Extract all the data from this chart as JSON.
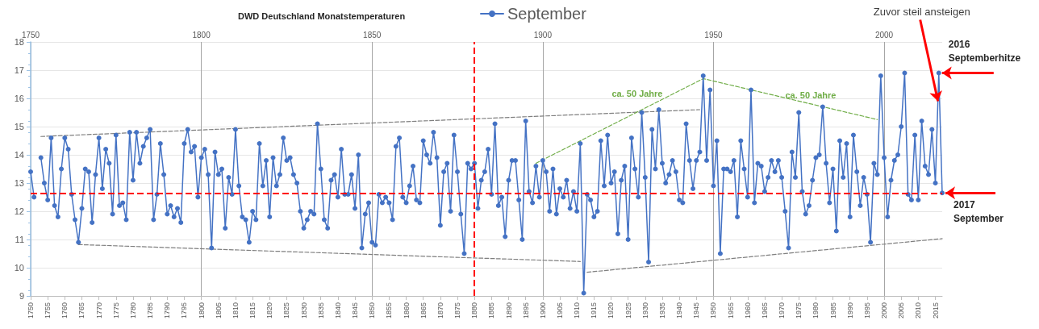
{
  "chart_data": {
    "type": "line",
    "title": "DWD Deutschland Monatstemperaturen",
    "xlim": [
      1750,
      2017
    ],
    "xticks": [
      1750,
      1755,
      1760,
      1765,
      1770,
      1775,
      1780,
      1785,
      1790,
      1795,
      1800,
      1805,
      1810,
      1815,
      1820,
      1825,
      1830,
      1835,
      1840,
      1845,
      1850,
      1855,
      1860,
      1865,
      1870,
      1875,
      1880,
      1885,
      1890,
      1895,
      1900,
      1905,
      1910,
      1915,
      1920,
      1925,
      1930,
      1935,
      1940,
      1945,
      1950,
      1955,
      1960,
      1965,
      1970,
      1975,
      1980,
      1985,
      1990,
      1995,
      2000,
      2005,
      2010,
      2015
    ],
    "x2lim": [
      1750,
      2017
    ],
    "x2ticks": [
      1750,
      1800,
      1850,
      1900,
      1950,
      2000
    ],
    "ylim": [
      9,
      18
    ],
    "yticks": [
      9,
      10,
      11,
      12,
      13,
      14,
      15,
      16,
      17,
      18
    ],
    "grid": true,
    "legend": "top",
    "series": [
      {
        "name": "September",
        "color": "#4472c4",
        "marker": "circle",
        "line_style": "solid",
        "x": [
          1750,
          1751,
          1752,
          1753,
          1754,
          1755,
          1756,
          1757,
          1758,
          1759,
          1760,
          1761,
          1762,
          1763,
          1764,
          1765,
          1766,
          1767,
          1768,
          1769,
          1770,
          1771,
          1772,
          1773,
          1774,
          1775,
          1776,
          1777,
          1778,
          1779,
          1780,
          1781,
          1782,
          1783,
          1784,
          1785,
          1786,
          1787,
          1788,
          1789,
          1790,
          1791,
          1792,
          1793,
          1794,
          1795,
          1796,
          1797,
          1798,
          1799,
          1800,
          1801,
          1802,
          1803,
          1804,
          1805,
          1806,
          1807,
          1808,
          1809,
          1810,
          1811,
          1812,
          1813,
          1814,
          1815,
          1816,
          1817,
          1818,
          1819,
          1820,
          1821,
          1822,
          1823,
          1824,
          1825,
          1826,
          1827,
          1828,
          1829,
          1830,
          1831,
          1832,
          1833,
          1834,
          1835,
          1836,
          1837,
          1838,
          1839,
          1840,
          1841,
          1842,
          1843,
          1844,
          1845,
          1846,
          1847,
          1848,
          1849,
          1850,
          1851,
          1852,
          1853,
          1854,
          1855,
          1856,
          1857,
          1858,
          1859,
          1860,
          1861,
          1862,
          1863,
          1864,
          1865,
          1866,
          1867,
          1868,
          1869,
          1870,
          1871,
          1872,
          1873,
          1874,
          1875,
          1876,
          1877,
          1878,
          1879,
          1880,
          1881,
          1882,
          1883,
          1884,
          1885,
          1886,
          1887,
          1888,
          1889,
          1890,
          1891,
          1892,
          1893,
          1894,
          1895,
          1896,
          1897,
          1898,
          1899,
          1900,
          1901,
          1902,
          1903,
          1904,
          1905,
          1906,
          1907,
          1908,
          1909,
          1910,
          1911,
          1912,
          1913,
          1914,
          1915,
          1916,
          1917,
          1918,
          1919,
          1920,
          1921,
          1922,
          1923,
          1924,
          1925,
          1926,
          1927,
          1928,
          1929,
          1930,
          1931,
          1932,
          1933,
          1934,
          1935,
          1936,
          1937,
          1938,
          1939,
          1940,
          1941,
          1942,
          1943,
          1944,
          1945,
          1946,
          1947,
          1948,
          1949,
          1950,
          1951,
          1952,
          1953,
          1954,
          1955,
          1956,
          1957,
          1958,
          1959,
          1960,
          1961,
          1962,
          1963,
          1964,
          1965,
          1966,
          1967,
          1968,
          1969,
          1970,
          1971,
          1972,
          1973,
          1974,
          1975,
          1976,
          1977,
          1978,
          1979,
          1980,
          1981,
          1982,
          1983,
          1984,
          1985,
          1986,
          1987,
          1988,
          1989,
          1990,
          1991,
          1992,
          1993,
          1994,
          1995,
          1996,
          1997,
          1998,
          1999,
          2000,
          2001,
          2002,
          2003,
          2004,
          2005,
          2006,
          2007,
          2008,
          2009,
          2010,
          2011,
          2012,
          2013,
          2014,
          2015,
          2016,
          2017
        ],
        "values": [
          13.4,
          12.5,
          null,
          13.9,
          13.0,
          12.4,
          14.6,
          12.2,
          11.8,
          13.5,
          14.6,
          14.2,
          12.6,
          11.7,
          10.9,
          12.1,
          13.5,
          13.4,
          11.6,
          13.3,
          14.6,
          12.8,
          14.2,
          13.7,
          11.9,
          14.7,
          12.2,
          12.3,
          11.7,
          14.8,
          13.1,
          14.8,
          13.7,
          14.3,
          14.6,
          14.9,
          11.7,
          12.6,
          14.4,
          13.3,
          11.9,
          12.2,
          11.8,
          12.1,
          11.6,
          14.4,
          14.9,
          14.1,
          14.3,
          12.5,
          13.9,
          14.2,
          13.3,
          10.7,
          14.1,
          13.3,
          13.5,
          11.4,
          13.2,
          12.6,
          14.9,
          12.9,
          11.8,
          11.7,
          10.9,
          12.0,
          11.7,
          14.4,
          12.9,
          13.8,
          11.8,
          13.9,
          12.9,
          13.3,
          14.6,
          13.8,
          13.9,
          13.3,
          13.0,
          12.0,
          11.4,
          11.7,
          12.0,
          11.9,
          15.1,
          13.5,
          11.7,
          11.4,
          13.1,
          13.3,
          12.5,
          14.2,
          12.6,
          12.6,
          13.3,
          12.1,
          14.0,
          10.7,
          11.9,
          12.3,
          10.9,
          10.8,
          12.6,
          12.3,
          12.5,
          12.3,
          11.7,
          14.3,
          14.6,
          12.5,
          12.3,
          12.9,
          13.6,
          12.4,
          12.3,
          14.5,
          14.0,
          13.7,
          14.8,
          13.9,
          11.5,
          13.4,
          13.7,
          12.0,
          14.7,
          13.4,
          11.9,
          10.5,
          13.7,
          13.5,
          13.7,
          12.1,
          13.1,
          13.4,
          14.2,
          12.6,
          15.1,
          12.2,
          12.5,
          11.1,
          13.1,
          13.8,
          13.8,
          12.4,
          11.0,
          15.2,
          12.7,
          12.3,
          13.6,
          12.5,
          13.8,
          13.4,
          12.0,
          13.5,
          11.9,
          12.8,
          12.5,
          13.1,
          12.1,
          12.7,
          12.0,
          14.4,
          9.1,
          12.6,
          12.4,
          11.8,
          12.0,
          14.5,
          12.9,
          14.7,
          13.0,
          13.4,
          11.2,
          13.1,
          13.6,
          11.0,
          14.6,
          13.5,
          12.5,
          15.5,
          13.2,
          10.2,
          14.9,
          13.5,
          15.6,
          13.7,
          13.0,
          13.3,
          13.8,
          13.4,
          12.4,
          12.3,
          15.1,
          13.8,
          12.8,
          13.8,
          14.1,
          16.8,
          13.8,
          16.3,
          12.9,
          14.5,
          10.5,
          13.5,
          13.5,
          13.4,
          13.8,
          11.8,
          14.5,
          13.5,
          12.5,
          16.3,
          12.3,
          13.7,
          13.6,
          12.7,
          13.2,
          13.8,
          13.4,
          13.8,
          13.2,
          12.0,
          10.7,
          14.1,
          13.2,
          15.5,
          12.7,
          11.9,
          12.2,
          13.1,
          13.9,
          14.0,
          15.7,
          13.7,
          12.3,
          13.5,
          11.3,
          14.5,
          13.2,
          14.4,
          11.8,
          14.7,
          13.4,
          12.2,
          13.2,
          12.6,
          10.9,
          13.7,
          13.3,
          16.8,
          13.9,
          11.8,
          13.1,
          13.8,
          14.0,
          15.0,
          16.9,
          12.6,
          12.4,
          14.7,
          12.4,
          15.2,
          13.6,
          13.3,
          14.9,
          13.0,
          16.9,
          12.65
        ]
      },
      {
        "type": "line",
        "color": "#7f7f7f",
        "marker": "none",
        "line_style": "dashed",
        "x": [
          1753,
          1946
        ],
        "values": [
          14.65,
          15.6
        ]
      },
      {
        "type": "line",
        "color": "#7f7f7f",
        "marker": "none",
        "line_style": "dashed",
        "x": [
          1764,
          1911
        ],
        "values": [
          10.82,
          10.22
        ]
      },
      {
        "type": "line",
        "color": "#7f7f7f",
        "marker": "none",
        "line_style": "dashed",
        "x": [
          1913,
          2017
        ],
        "values": [
          9.84,
          11.03
        ]
      },
      {
        "type": "line",
        "color": "#70ad47",
        "marker": "none",
        "line_style": "dashed",
        "x": [
          1898,
          1947,
          1998
        ],
        "values": [
          13.7,
          16.7,
          15.25
        ]
      }
    ],
    "ref_lines": [
      {
        "axis": "y",
        "value": 12.65,
        "label": "2017\nSeptember",
        "color": "#ff0000",
        "line_style": "dashed"
      },
      {
        "axis": "x",
        "value": 1880,
        "color": "#ff0000",
        "line_style": "dashed"
      }
    ],
    "annotations": [
      {
        "text": "Zuvor steil ansteigen",
        "x": 2015.75,
        "y": 15.9
      },
      {
        "text": "2016\nSeptemberhitze",
        "x": 2016,
        "y": 16.9
      },
      "ca. 50 Jahre",
      "ca. 50 Jahre"
    ]
  }
}
